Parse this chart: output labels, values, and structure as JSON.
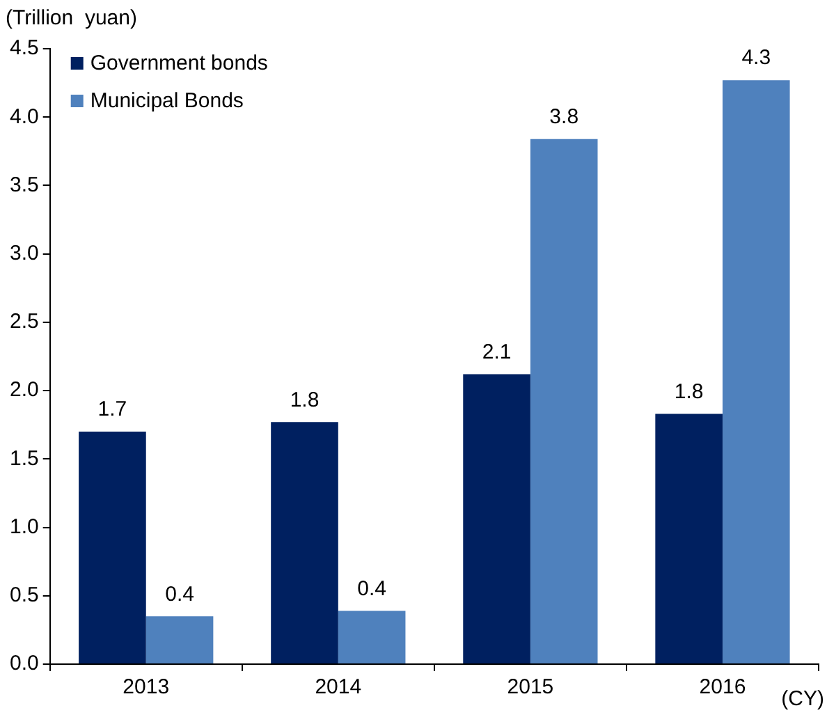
{
  "chart_data": {
    "type": "bar",
    "ylabel": "(Trillion  yuan)",
    "xlabel": "(CY)",
    "categories": [
      "2013",
      "2014",
      "2015",
      "2016"
    ],
    "series": [
      {
        "name": "Government bonds",
        "color": "#002060",
        "values": [
          1.7,
          1.77,
          2.12,
          1.83
        ],
        "value_labels": [
          "1.7",
          "1.8",
          "2.1",
          "1.8"
        ]
      },
      {
        "name": "Municipal Bonds",
        "color": "#4f81bd",
        "values": [
          0.35,
          0.39,
          3.84,
          4.27
        ],
        "value_labels": [
          "0.4",
          "0.4",
          "3.8",
          "4.3"
        ]
      }
    ],
    "ylim": [
      0,
      4.5
    ],
    "yticks": [
      {
        "value": 0,
        "label": "0.0"
      },
      {
        "value": 0.5,
        "label": "0.5"
      },
      {
        "value": 1,
        "label": "1.0"
      },
      {
        "value": 1.5,
        "label": "1.5"
      },
      {
        "value": 2,
        "label": "2.0"
      },
      {
        "value": 2.5,
        "label": "2.5"
      },
      {
        "value": 3,
        "label": "3.0"
      },
      {
        "value": 3.5,
        "label": "3.5"
      },
      {
        "value": 4,
        "label": "4.0"
      },
      {
        "value": 4.5,
        "label": "4.5"
      }
    ],
    "grid": false,
    "legend": "top left"
  }
}
